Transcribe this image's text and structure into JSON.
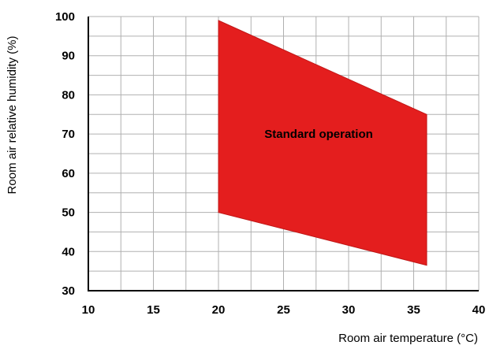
{
  "chart_data": {
    "type": "area",
    "title": "",
    "xlabel": "Room air temperature (°C)",
    "ylabel": "Room air relative humidity (%)",
    "xlim": [
      10,
      40
    ],
    "ylim": [
      30,
      100
    ],
    "x_ticks": [
      10,
      15,
      20,
      25,
      30,
      35,
      40
    ],
    "y_ticks": [
      30,
      40,
      50,
      60,
      70,
      80,
      90,
      100
    ],
    "x_minor_step": 2.5,
    "y_minor_step": 5,
    "grid": true,
    "region": {
      "points": [
        [
          20,
          99
        ],
        [
          36,
          75
        ],
        [
          36,
          36.5
        ],
        [
          20,
          50
        ]
      ]
    },
    "annotations": [
      {
        "text": "Standard operation",
        "x": 27.7,
        "y": 70
      }
    ],
    "colors": {
      "region_fill": "#e41e1e",
      "region_stroke": "#c01717",
      "grid": "#b0b0b0",
      "axis": "#000000"
    }
  }
}
